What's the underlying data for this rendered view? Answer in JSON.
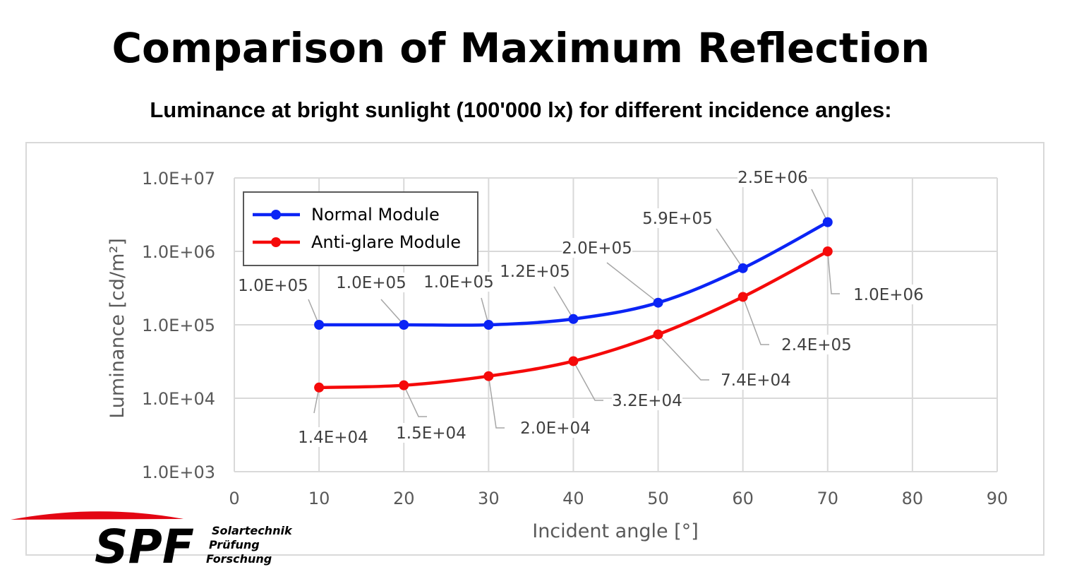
{
  "title": "Comparison of Maximum Reflection",
  "subtitle": "Luminance at bright sunlight (100'000 lx) for different incidence angles:",
  "chart_data": {
    "type": "line",
    "xlabel": "Incident angle [°]",
    "ylabel": "Luminance [cd/m²]",
    "xlim": [
      0,
      90
    ],
    "ylim": [
      1000,
      10000000
    ],
    "yscale": "log",
    "grid": true,
    "legend_placement": "top-left",
    "x_ticks": [
      "0",
      "10",
      "20",
      "30",
      "40",
      "50",
      "60",
      "70",
      "80",
      "90"
    ],
    "y_ticks": [
      "1.0E+07",
      "1.0E+06",
      "1.0E+05",
      "1.0E+04",
      "1.0E+03"
    ],
    "x": [
      10,
      20,
      30,
      40,
      50,
      60,
      70
    ],
    "series": [
      {
        "name": "Normal Module",
        "color": "#0b24f5",
        "values": [
          100000,
          100000,
          100000,
          120000,
          200000,
          590000,
          2500000
        ],
        "labels": [
          "1.0E+05",
          "1.0E+05",
          "1.0E+05",
          "1.2E+05",
          "2.0E+05",
          "5.9E+05",
          "2.5E+06"
        ]
      },
      {
        "name": "Anti-glare Module",
        "color": "#f50a0a",
        "values": [
          14000,
          15000,
          20000,
          32000,
          74000,
          240000,
          1000000
        ],
        "labels": [
          "1.4E+04",
          "1.5E+04",
          "2.0E+04",
          "3.2E+04",
          "7.4E+04",
          "2.4E+05",
          "1.0E+06"
        ]
      }
    ]
  },
  "logo": {
    "text": "SPF",
    "line1": "Solartechnik",
    "line2": "Prüfung",
    "line3": "Forschung",
    "color": "#e30613"
  }
}
